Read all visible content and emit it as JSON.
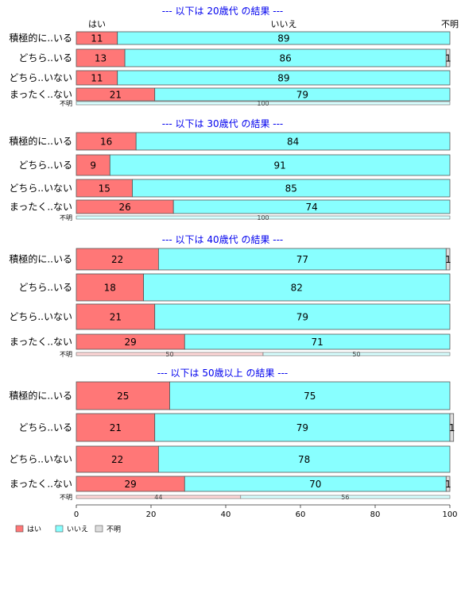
{
  "chart_data": {
    "type": "bar",
    "stacked": true,
    "orientation": "horizontal",
    "column_headers": {
      "yes": "はい",
      "no": "いいえ",
      "unknown": "不明"
    },
    "legend": {
      "position": "bottom-left",
      "items": [
        {
          "label": "はい",
          "color": "#ff7777"
        },
        {
          "label": "いいえ",
          "color": "#88ffff"
        },
        {
          "label": "不明",
          "color": "#dddddd"
        }
      ]
    },
    "x_ticks": [
      "0",
      "20",
      "40",
      "60",
      "80",
      "100"
    ],
    "xlim": [
      0,
      100
    ],
    "colors": {
      "yes": "#ff7777",
      "no": "#88ffff",
      "unknown": "#dddddd",
      "title": "#0000ee",
      "unknown_row_yes": "#ffd8d8",
      "unknown_row_no": "#d8ffff"
    },
    "panels": [
      {
        "title": "--- 以下は 20歳代 の結果 ---",
        "show_column_headers": true,
        "categories": [
          "積極的に..いる",
          "どちら..いる",
          "どちら..いない",
          "まったく..ない"
        ],
        "series": [
          {
            "name": "はい",
            "values": [
              11,
              13,
              11,
              21
            ]
          },
          {
            "name": "いいえ",
            "values": [
              89,
              86,
              89,
              79
            ]
          },
          {
            "name": "不明",
            "values": [
              0,
              1,
              0,
              0
            ]
          }
        ],
        "unknown_row": {
          "label": "不明",
          "segments": [
            {
              "series": "いいえ",
              "value": 100
            }
          ]
        }
      },
      {
        "title": "--- 以下は 30歳代 の結果 ---",
        "show_column_headers": false,
        "categories": [
          "積極的に..いる",
          "どちら..いる",
          "どちら..いない",
          "まったく..ない"
        ],
        "series": [
          {
            "name": "はい",
            "values": [
              16,
              9,
              15,
              26
            ]
          },
          {
            "name": "いいえ",
            "values": [
              84,
              91,
              85,
              74
            ]
          },
          {
            "name": "不明",
            "values": [
              0,
              0,
              0,
              0
            ]
          }
        ],
        "unknown_row": {
          "label": "不明",
          "segments": [
            {
              "series": "いいえ",
              "value": 100
            }
          ]
        }
      },
      {
        "title": "--- 以下は 40歳代 の結果 ---",
        "show_column_headers": false,
        "categories": [
          "積極的に..いる",
          "どちら..いる",
          "どちら..いない",
          "まったく..ない"
        ],
        "series": [
          {
            "name": "はい",
            "values": [
              22,
              18,
              21,
              29
            ]
          },
          {
            "name": "いいえ",
            "values": [
              77,
              82,
              79,
              71
            ]
          },
          {
            "name": "不明",
            "values": [
              1,
              0,
              0,
              0
            ]
          }
        ],
        "unknown_row": {
          "label": "不明",
          "segments": [
            {
              "series": "はい",
              "value": 50
            },
            {
              "series": "いいえ",
              "value": 50
            }
          ]
        }
      },
      {
        "title": "--- 以下は 50歳以上 の結果 ---",
        "show_column_headers": false,
        "categories": [
          "積極的に..いる",
          "どちら..いる",
          "どちら..いない",
          "まったく..ない"
        ],
        "series": [
          {
            "name": "はい",
            "values": [
              25,
              21,
              22,
              29
            ]
          },
          {
            "name": "いいえ",
            "values": [
              75,
              79,
              78,
              70
            ]
          },
          {
            "name": "不明",
            "values": [
              0,
              1,
              0,
              1
            ]
          }
        ],
        "unknown_row": {
          "label": "不明",
          "segments": [
            {
              "series": "はい",
              "value": 44
            },
            {
              "series": "いいえ",
              "value": 56
            }
          ]
        }
      }
    ]
  }
}
